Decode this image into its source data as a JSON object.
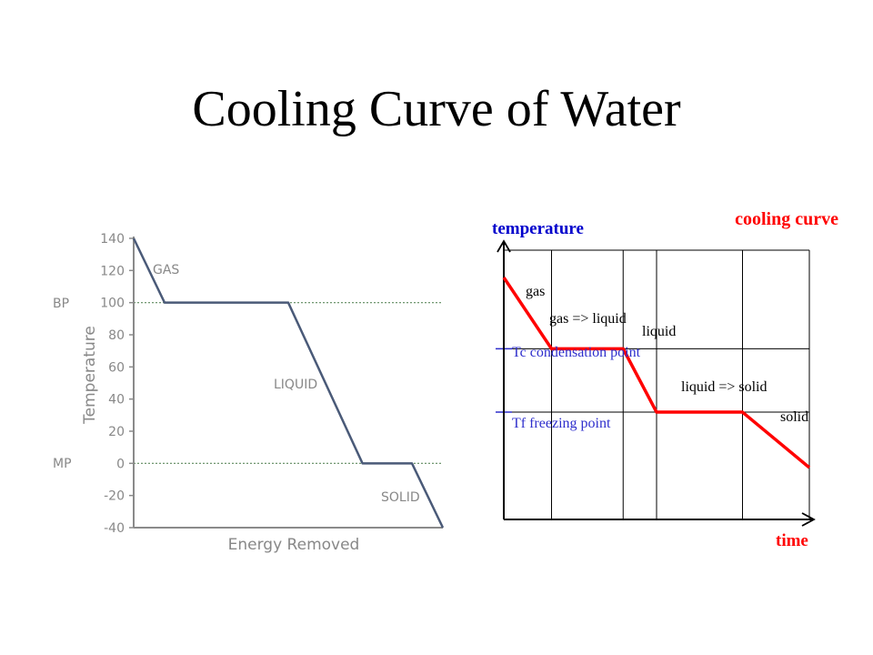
{
  "slide": {
    "title": "Cooling Curve of Water"
  },
  "chart_data": [
    {
      "type": "line",
      "xlabel": "Energy Removed",
      "ylabel": "Temperature",
      "ylim": [
        -40,
        140
      ],
      "yticks": [
        140,
        120,
        100,
        80,
        60,
        40,
        20,
        0,
        -20,
        -40
      ],
      "x_axis_ticks_shown": false,
      "series": [
        {
          "values": [
            [
              0,
              140
            ],
            [
              0.1,
              100
            ],
            [
              0.5,
              100
            ],
            [
              0.74,
              0
            ],
            [
              0.9,
              0
            ],
            [
              1.0,
              -40
            ]
          ]
        }
      ],
      "reference_lines": [
        {
          "label": "BP",
          "y": 100,
          "style": "dotted"
        },
        {
          "label": "MP",
          "y": 0,
          "style": "dotted"
        }
      ],
      "annotations": [
        "GAS",
        "LIQUID",
        "SOLID"
      ],
      "colors": {
        "line": "#4a5a78",
        "axis": "#8a8a8a",
        "text": "#888888",
        "ref": "#5e8a5e"
      }
    },
    {
      "type": "line",
      "title": "cooling curve",
      "xlabel": "time",
      "ylabel": "temperature",
      "axis_ticks_shown": false,
      "series": [
        {
          "values": [
            [
              0,
              3.4
            ],
            [
              1,
              1.6
            ],
            [
              2.5,
              1.6
            ],
            [
              3.2,
              0
            ],
            [
              5.0,
              0
            ],
            [
              6.4,
              -1.4
            ]
          ]
        }
      ],
      "reference_lines": [
        {
          "label": "Tc condensation point",
          "y": 1.6
        },
        {
          "label": "Tf freezing point",
          "y": 0
        }
      ],
      "annotations": [
        "gas",
        "gas => liquid",
        "liquid",
        "liquid => solid",
        "solid"
      ],
      "grid": true,
      "colors": {
        "line": "#ff0000",
        "title": "#ff0000",
        "axis_labels": "#0000cc",
        "ref_labels": "#2e2ecc",
        "grid": "#000000"
      }
    }
  ]
}
